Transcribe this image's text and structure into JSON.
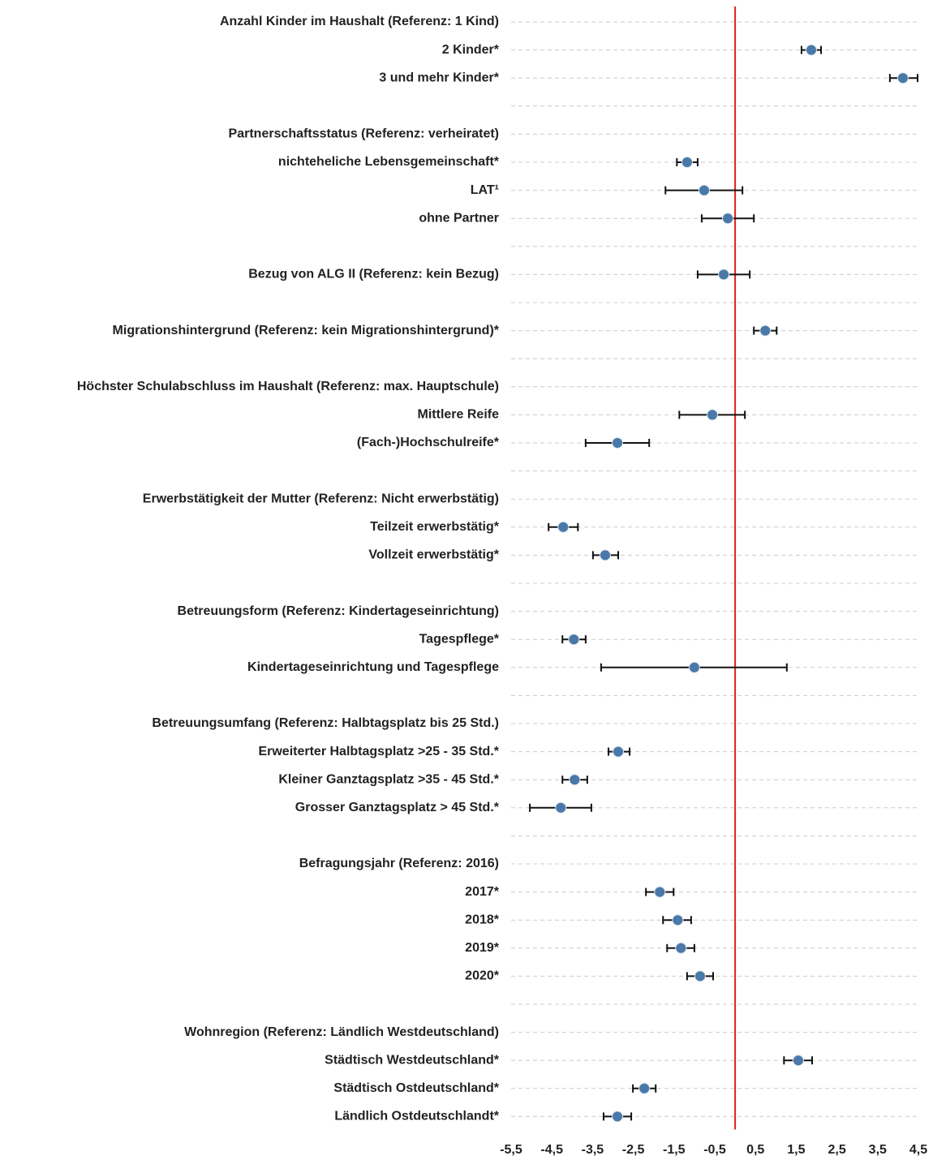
{
  "chart_data": {
    "type": "forest",
    "categories": [
      "Anzahl Kinder im Haushalt (Referenz: 1 Kind)",
      "2 Kinder*",
      "3 und mehr Kinder*",
      null,
      "Partnerschaftsstatus (Referenz: verheiratet)",
      "nichteheliche Lebensgemeinschaft*",
      "LAT¹",
      "ohne Partner",
      null,
      "Bezug von ALG II (Referenz: kein Bezug)",
      null,
      "Migrationshintergrund (Referenz: kein Migrationshintergrund)*",
      null,
      "Höchster Schulabschluss im Haushalt (Referenz: max. Hauptschule)",
      "Mittlere Reife",
      "(Fach-)Hochschulreife*",
      null,
      "Erwerbstätigkeit der Mutter (Referenz: Nicht erwerbstätig)",
      "Teilzeit erwerbstätig*",
      "Vollzeit erwerbstätig*",
      null,
      "Betreuungsform (Referenz: Kindertageseinrichtung)",
      "Tagespflege*",
      "Kindertageseinrichtung und Tagespflege",
      null,
      "Betreuungsumfang (Referenz: Halbtagsplatz bis 25 Std.)",
      "Erweiterter Halbtagsplatz >25 - 35 Std.*",
      "Kleiner Ganztagsplatz >35 - 45 Std.*",
      "Grosser Ganztagsplatz > 45 Std.*",
      null,
      "Befragungsjahr (Referenz: 2016)",
      "2017*",
      "2018*",
      "2019*",
      "2020*",
      null,
      "Wohnregion (Referenz: Ländlich Westdeutschland)",
      "Städtisch Westdeutschland*",
      "Städtisch Ostdeutschland*",
      "Ländlich Ostdeutschlandt*"
    ],
    "values": [
      null,
      1.87,
      4.12,
      null,
      null,
      -1.18,
      -0.76,
      -0.18,
      null,
      -0.28,
      null,
      0.74,
      null,
      null,
      -0.56,
      -2.89,
      null,
      null,
      -4.22,
      -3.19,
      null,
      null,
      -3.96,
      -1.0,
      null,
      null,
      -2.87,
      -3.94,
      -4.28,
      null,
      null,
      -1.85,
      -1.41,
      -1.33,
      -0.86,
      null,
      null,
      1.55,
      -2.23,
      -2.89
    ],
    "lower": [
      null,
      1.63,
      3.8,
      null,
      null,
      -1.43,
      -1.71,
      -0.82,
      null,
      -0.92,
      null,
      0.46,
      null,
      null,
      -1.37,
      -3.67,
      null,
      null,
      -4.58,
      -3.49,
      null,
      null,
      -4.24,
      -3.29,
      null,
      null,
      -3.11,
      -4.24,
      -5.04,
      null,
      null,
      -2.19,
      -1.77,
      -1.67,
      -1.18,
      null,
      null,
      1.2,
      -2.51,
      -3.23
    ],
    "upper": [
      null,
      2.11,
      4.48,
      null,
      null,
      -0.92,
      0.18,
      0.46,
      null,
      0.36,
      null,
      1.02,
      null,
      null,
      0.24,
      -2.11,
      null,
      null,
      -3.86,
      -2.87,
      null,
      null,
      -3.67,
      1.27,
      null,
      null,
      -2.59,
      -3.63,
      -3.53,
      null,
      null,
      -1.51,
      -1.08,
      -1.0,
      -0.54,
      null,
      null,
      1.89,
      -1.95,
      -2.55
    ],
    "color": "#4a78a8",
    "reference_line": 0,
    "reference_color": "#e0201b",
    "xlim": [
      -5.5,
      4.5
    ],
    "xticks": [
      {
        "value": -5.5,
        "label": "-5,5"
      },
      {
        "value": -4.5,
        "label": "-4,5"
      },
      {
        "value": -3.5,
        "label": "-3,5"
      },
      {
        "value": -2.5,
        "label": "-2,5"
      },
      {
        "value": -1.5,
        "label": "-1,5"
      },
      {
        "value": -0.5,
        "label": "-0,5"
      },
      {
        "value": 0.5,
        "label": "0,5"
      },
      {
        "value": 1.5,
        "label": "1,5"
      },
      {
        "value": 2.5,
        "label": "2,5"
      },
      {
        "value": 3.5,
        "label": "3,5"
      },
      {
        "value": 4.5,
        "label": "4,5"
      }
    ],
    "grid": true
  }
}
